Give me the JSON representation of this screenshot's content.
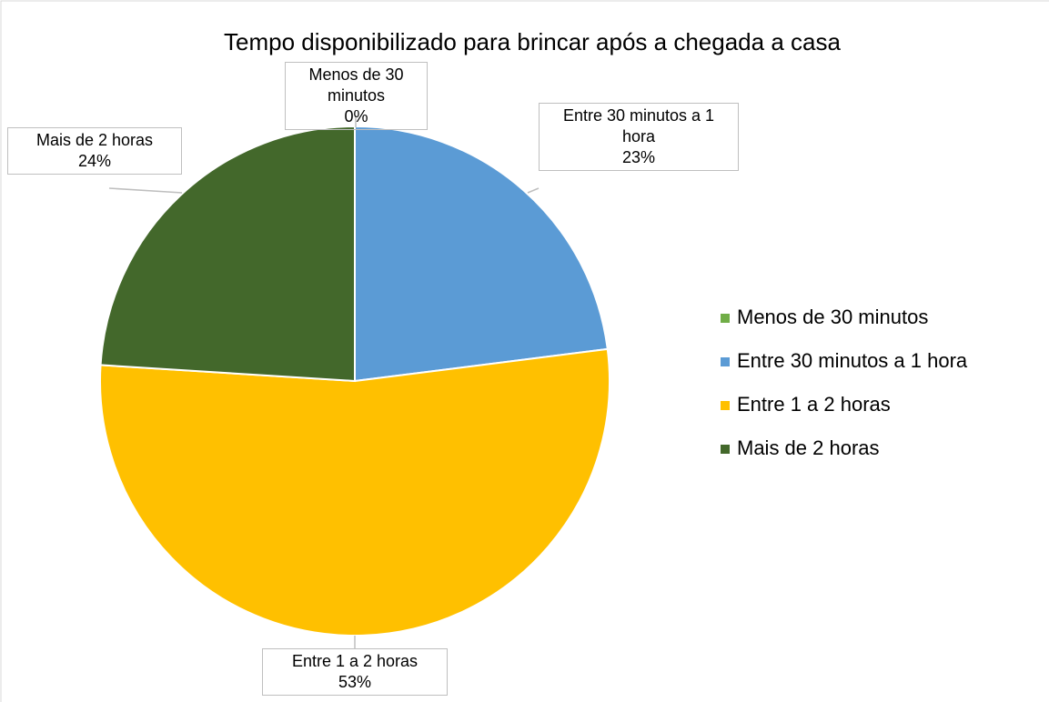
{
  "chart_data": {
    "type": "pie",
    "title": "Tempo disponibilizado para brincar após a chegada a casa",
    "categories": [
      "Menos de 30 minutos",
      "Entre 30 minutos a 1 hora",
      "Entre 1 a 2 horas",
      "Mais de 2 horas"
    ],
    "values": [
      0,
      23,
      53,
      24
    ],
    "value_labels": [
      "0%",
      "23%",
      "53%",
      "24%"
    ],
    "colors": [
      "#70ad47",
      "#5b9bd5",
      "#ffc000",
      "#43682b"
    ],
    "legend": "right"
  }
}
